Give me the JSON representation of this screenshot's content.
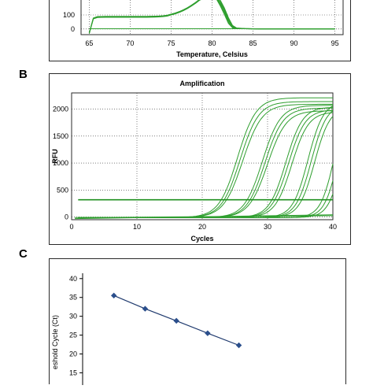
{
  "colors": {
    "curve": "#2e9e2e",
    "threshold": "#1f8f1f",
    "melt_peak": "#2f9f2f",
    "std_line": "#1f3a6e",
    "std_marker": "#2b4f8c",
    "grid": "#333333",
    "plot_border": "#2a2a2a"
  },
  "panels": {
    "b_letter": "B",
    "c_letter": "C"
  },
  "chart_data": [
    {
      "id": "melt",
      "type": "line",
      "title": "",
      "xlabel": "Temperature, Celsius",
      "ylabel": "",
      "xlim": [
        64,
        96
      ],
      "ylim": [
        -40,
        240
      ],
      "x_ticks": [
        65,
        70,
        75,
        80,
        85,
        90,
        95
      ],
      "y_ticks": [
        0,
        100
      ],
      "y_tick_labels": [
        "0",
        "100"
      ],
      "grid": true,
      "series": [
        {
          "x": [
            65.0,
            65.5,
            66,
            67,
            68,
            69,
            70,
            71,
            72,
            73,
            73.5,
            74,
            74.5,
            75,
            75.5,
            76,
            76.5,
            77,
            77.5,
            78,
            78.5,
            79,
            79.5,
            80,
            80.5,
            81,
            81.5,
            82,
            82.5,
            83,
            84,
            85,
            86,
            88,
            90,
            92,
            95
          ],
          "y": [
            -30,
            75,
            85,
            88,
            88,
            88,
            88,
            88,
            88,
            89,
            90,
            92,
            96,
            104,
            112,
            122,
            135,
            150,
            168,
            188,
            210,
            232,
            240,
            240,
            230,
            185,
            130,
            60,
            15,
            5,
            3,
            2,
            1,
            1,
            1,
            1,
            1
          ]
        },
        {
          "x": [
            65.0,
            65.5,
            66,
            67,
            68,
            69,
            70,
            71,
            72,
            73,
            73.5,
            74,
            74.5,
            75,
            75.5,
            76,
            76.5,
            77,
            77.5,
            78,
            78.5,
            79,
            79.5,
            80,
            80.5,
            81,
            81.5,
            82,
            82.5,
            83,
            84,
            85,
            86,
            88,
            90,
            92,
            95
          ],
          "y": [
            -30,
            78,
            88,
            90,
            90,
            90,
            90,
            90,
            90,
            91,
            92,
            94,
            98,
            106,
            114,
            124,
            137,
            152,
            170,
            190,
            212,
            234,
            240,
            240,
            225,
            175,
            118,
            48,
            10,
            4,
            2,
            1,
            1,
            1,
            1,
            1,
            1
          ]
        },
        {
          "x": [
            65.0,
            65.5,
            66,
            67,
            68,
            69,
            70,
            71,
            72,
            73,
            73.5,
            74,
            74.5,
            75,
            75.5,
            76,
            76.5,
            77,
            77.5,
            78,
            78.5,
            79,
            79.5,
            80,
            80.5,
            81,
            81.5,
            82,
            82.5,
            83,
            84,
            85,
            86,
            88,
            90,
            92,
            95
          ],
          "y": [
            -30,
            72,
            82,
            84,
            84,
            84,
            84,
            84,
            84,
            85,
            86,
            88,
            92,
            100,
            108,
            118,
            131,
            146,
            164,
            184,
            206,
            228,
            240,
            240,
            235,
            195,
            140,
            70,
            20,
            6,
            3,
            2,
            1,
            1,
            1,
            1,
            1
          ]
        },
        {
          "x": [
            65.0,
            65.5,
            66,
            67,
            68,
            69,
            70,
            71,
            72,
            73,
            73.5,
            74,
            74.5,
            75,
            75.5,
            76,
            76.5,
            77,
            77.5,
            78,
            78.5,
            79,
            79.5,
            80,
            80.5,
            81,
            81.5,
            82,
            82.5,
            83,
            84,
            85,
            86,
            88,
            90,
            92,
            95
          ],
          "y": [
            -30,
            76,
            86,
            89,
            89,
            89,
            89,
            89,
            89,
            90,
            91,
            93,
            97,
            105,
            113,
            123,
            136,
            151,
            169,
            189,
            211,
            233,
            240,
            240,
            220,
            165,
            105,
            40,
            8,
            4,
            2,
            1,
            1,
            1,
            1,
            1,
            1
          ]
        },
        {
          "x": [
            65.0,
            65.5,
            66,
            67,
            68,
            69,
            70,
            71,
            72,
            73,
            73.5,
            74,
            74.5,
            75,
            75.5,
            76,
            76.5,
            77,
            77.5,
            78,
            78.5,
            79,
            79.5,
            80,
            80.5,
            81,
            81.5,
            82,
            82.5,
            83,
            84,
            85,
            86,
            88,
            90,
            92,
            95
          ],
          "y": [
            -30,
            74,
            84,
            86,
            86,
            86,
            86,
            86,
            86,
            87,
            88,
            90,
            94,
            102,
            110,
            120,
            133,
            148,
            166,
            186,
            208,
            230,
            240,
            240,
            238,
            205,
            150,
            80,
            25,
            7,
            3,
            2,
            1,
            1,
            1,
            1,
            1
          ]
        },
        {
          "x": [
            65.0,
            66,
            68,
            70,
            72,
            74,
            76,
            78,
            80,
            82,
            84,
            86,
            88,
            90,
            92,
            95
          ],
          "y": [
            2,
            2,
            2,
            2,
            2,
            2,
            2,
            2,
            2,
            2,
            2,
            2,
            2,
            2,
            2,
            2
          ]
        }
      ]
    },
    {
      "id": "amplification",
      "type": "line",
      "title": "Amplification",
      "xlabel": "Cycles",
      "ylabel": "RFU",
      "xlim": [
        0,
        40
      ],
      "ylim": [
        -50,
        2300
      ],
      "x_ticks": [
        0,
        10,
        20,
        30,
        40
      ],
      "y_ticks": [
        0,
        500,
        1000,
        1500,
        2000
      ],
      "threshold": 320,
      "grid": true,
      "series": [
        {
          "name": "",
          "ct": 23.2,
          "max": 2220,
          "k": 0.7
        },
        {
          "name": "",
          "ct": 23.6,
          "max": 2150,
          "k": 0.7
        },
        {
          "name": "",
          "ct": 24.0,
          "max": 2100,
          "k": 0.68
        },
        {
          "name": "",
          "ct": 27.0,
          "max": 2080,
          "k": 0.72
        },
        {
          "name": "",
          "ct": 27.4,
          "max": 2030,
          "k": 0.72
        },
        {
          "name": "",
          "ct": 27.8,
          "max": 1980,
          "k": 0.7
        },
        {
          "name": "",
          "ct": 30.6,
          "max": 2050,
          "k": 0.78
        },
        {
          "name": "",
          "ct": 31.0,
          "max": 2000,
          "k": 0.78
        },
        {
          "name": "",
          "ct": 31.5,
          "max": 1960,
          "k": 0.78
        },
        {
          "name": "",
          "ct": 34.0,
          "max": 2150,
          "k": 0.85
        },
        {
          "name": "",
          "ct": 34.5,
          "max": 2100,
          "k": 0.85
        },
        {
          "name": "",
          "ct": 35.0,
          "max": 2050,
          "k": 0.85
        },
        {
          "name": "",
          "ct": 38.0,
          "max": 2200,
          "k": 0.95
        },
        {
          "name": "",
          "ct": 38.6,
          "max": 2150,
          "k": 0.95
        },
        {
          "name": "",
          "ct": 39.2,
          "max": 2100,
          "k": 0.95
        }
      ]
    },
    {
      "id": "standard_curve",
      "type": "scatter",
      "title": "",
      "xlabel": "",
      "ylabel": "ThresholdCycle (Ct)",
      "ylabel_visible": "eshold Cycle (Ct)",
      "xlim": [
        0,
        7
      ],
      "ylim": [
        13,
        41
      ],
      "y_ticks": [
        15,
        20,
        25,
        30,
        35,
        40
      ],
      "grid": false,
      "points": [
        {
          "x": 1,
          "y": 35.5
        },
        {
          "x": 2,
          "y": 32.0
        },
        {
          "x": 3,
          "y": 28.8
        },
        {
          "x": 4,
          "y": 25.5
        },
        {
          "x": 5,
          "y": 22.3
        }
      ]
    }
  ]
}
